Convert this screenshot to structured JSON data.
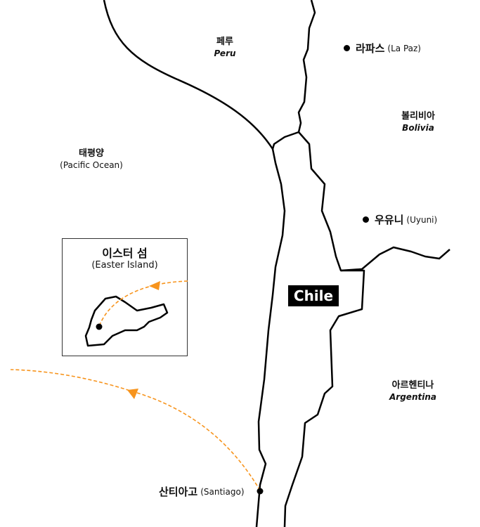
{
  "colors": {
    "route": "#F7941D",
    "border": "#000000"
  },
  "countries": [
    {
      "ko": "페루",
      "en": "Peru"
    },
    {
      "ko": "볼리비아",
      "en": "Bolivia"
    },
    {
      "ko": "아르헨티나",
      "en": "Argentina"
    }
  ],
  "ocean": {
    "ko": "태평양",
    "en": "(Pacific Ocean)"
  },
  "cities": [
    {
      "ko": "라파스",
      "en": "(La Paz)"
    },
    {
      "ko": "우유니",
      "en": "(Uyuni)"
    },
    {
      "ko": "산티아고",
      "en": "(Santiago)"
    }
  ],
  "inset": {
    "ko": "이스터 섬",
    "en": "(Easter Island)"
  },
  "chile_label": "Chile"
}
